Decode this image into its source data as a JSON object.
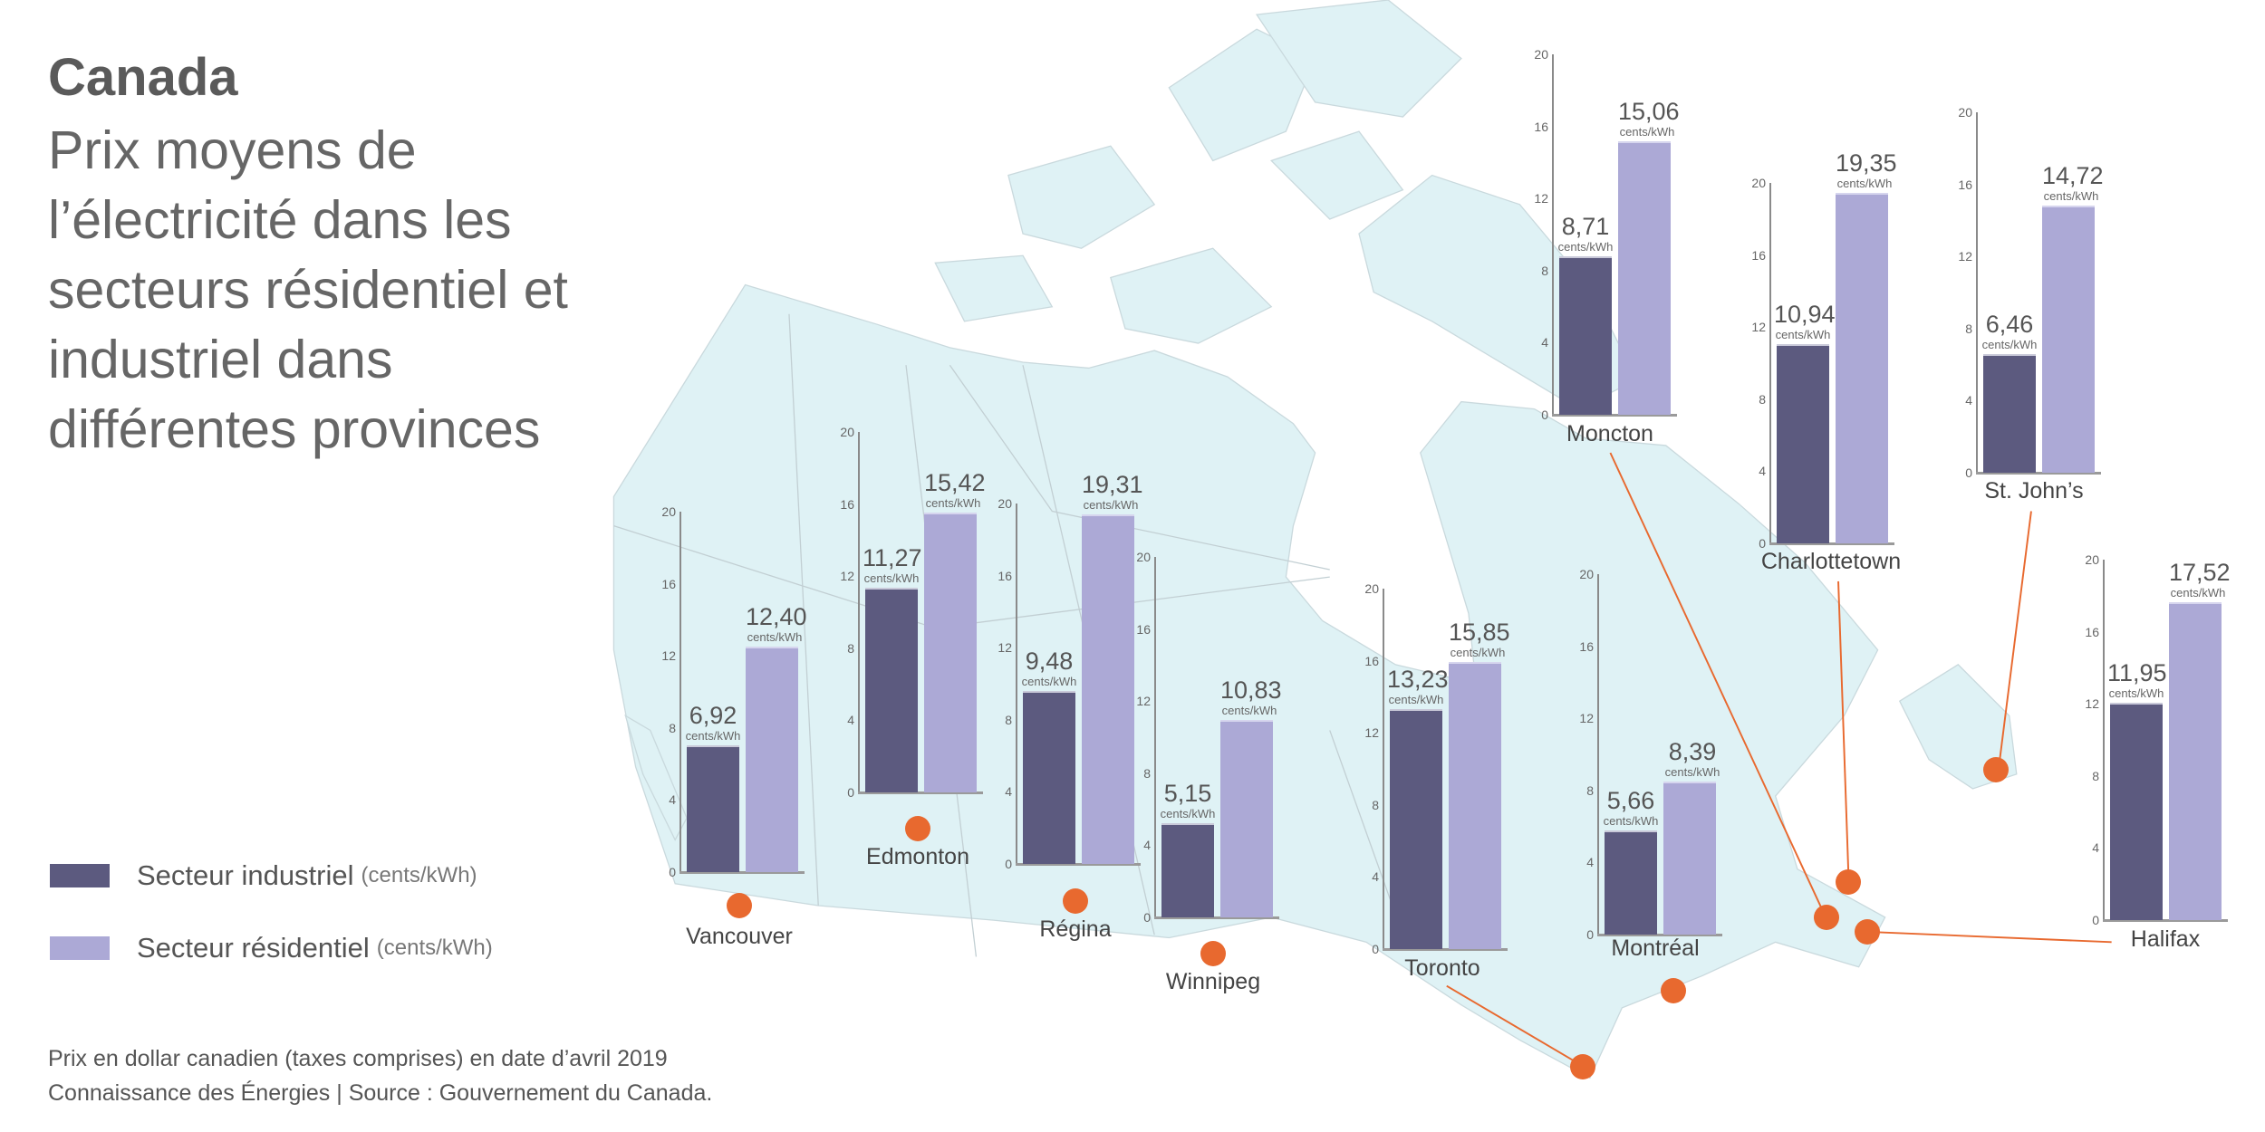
{
  "title": "Canada",
  "subtitle": "Prix moyens de l’électricité dans les secteurs résidentiel et industriel dans différentes provinces",
  "legend": [
    {
      "label": "Secteur industriel",
      "unit": "(cents/kWh)",
      "color": "#5c5a7f"
    },
    {
      "label": "Secteur résidentiel",
      "unit": "(cents/kWh)",
      "color": "#aca9d6"
    }
  ],
  "footer": {
    "line1": "Prix en dollar canadien (taxes comprises) en date d’avril 2019",
    "line2": "Connaissance des Énergies | Source : Gouvernement du Canada."
  },
  "colors": {
    "industriel": "#5c5a7f",
    "residentiel": "#aca9d6",
    "marker": "#e8692f",
    "land": "#dff2f5"
  },
  "chart_data": {
    "type": "bar",
    "unit_label": "cents/kWh",
    "ylim": [
      0,
      20
    ],
    "yticks": [
      "0",
      "4",
      "8",
      "12",
      "16",
      "20"
    ],
    "series_names": [
      "Secteur industriel",
      "Secteur résidentiel"
    ],
    "cities": [
      {
        "name": "Vancouver",
        "industriel": 6.92,
        "residentiel": 12.4,
        "industriel_label": "6,92",
        "residentiel_label": "12,40"
      },
      {
        "name": "Edmonton",
        "industriel": 11.27,
        "residentiel": 15.42,
        "industriel_label": "11,27",
        "residentiel_label": "15,42"
      },
      {
        "name": "Régina",
        "industriel": 9.48,
        "residentiel": 19.31,
        "industriel_label": "9,48",
        "residentiel_label": "19,31"
      },
      {
        "name": "Winnipeg",
        "industriel": 5.15,
        "residentiel": 10.83,
        "industriel_label": "5,15",
        "residentiel_label": "10,83"
      },
      {
        "name": "Toronto",
        "industriel": 13.23,
        "residentiel": 15.85,
        "industriel_label": "13,23",
        "residentiel_label": "15,85"
      },
      {
        "name": "Montréal",
        "industriel": 5.66,
        "residentiel": 8.39,
        "industriel_label": "5,66",
        "residentiel_label": "8,39"
      },
      {
        "name": "Moncton",
        "industriel": 8.71,
        "residentiel": 15.06,
        "industriel_label": "8,71",
        "residentiel_label": "15,06"
      },
      {
        "name": "Charlottetown",
        "industriel": 10.94,
        "residentiel": 19.35,
        "industriel_label": "10,94",
        "residentiel_label": "19,35"
      },
      {
        "name": "St. John’s",
        "industriel": 6.46,
        "residentiel": 14.72,
        "industriel_label": "6,46",
        "residentiel_label": "14,72"
      },
      {
        "name": "Halifax",
        "industriel": 11.95,
        "residentiel": 17.52,
        "industriel_label": "11,95",
        "residentiel_label": "17,52"
      }
    ]
  }
}
